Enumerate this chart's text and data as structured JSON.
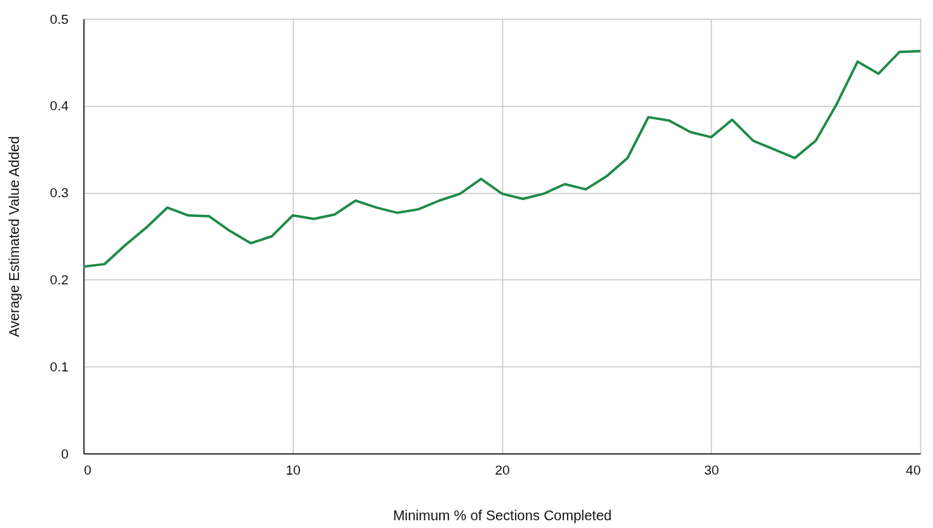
{
  "chart_data": {
    "type": "line",
    "xlabel": "Minimum % of Sections Completed",
    "ylabel": "Average Estimated Value Added",
    "x": [
      0,
      1,
      2,
      3,
      4,
      5,
      6,
      7,
      8,
      9,
      10,
      11,
      12,
      13,
      14,
      15,
      16,
      17,
      18,
      19,
      20,
      21,
      22,
      23,
      24,
      25,
      26,
      27,
      28,
      29,
      30,
      31,
      32,
      33,
      34,
      35,
      36,
      37,
      38,
      39,
      40
    ],
    "series": [
      {
        "color": "#1e8a47",
        "values": [
          0.215,
          0.218,
          0.24,
          0.26,
          0.283,
          0.274,
          0.273,
          0.256,
          0.242,
          0.25,
          0.274,
          0.27,
          0.275,
          0.291,
          0.283,
          0.277,
          0.281,
          0.291,
          0.299,
          0.316,
          0.299,
          0.293,
          0.299,
          0.31,
          0.304,
          0.319,
          0.34,
          0.387,
          0.383,
          0.37,
          0.364,
          0.384,
          0.36,
          0.35,
          0.34,
          0.36,
          0.402,
          0.451,
          0.437,
          0.462,
          0.463
        ]
      }
    ],
    "xlim": [
      0,
      40
    ],
    "xticks": [
      0,
      10,
      20,
      30,
      40
    ],
    "ylim": [
      0,
      0.5
    ],
    "yticks": [
      0,
      0.1,
      0.2,
      0.3,
      0.4,
      0.5
    ],
    "grid": true,
    "marker": "none",
    "line_style": "solid"
  }
}
